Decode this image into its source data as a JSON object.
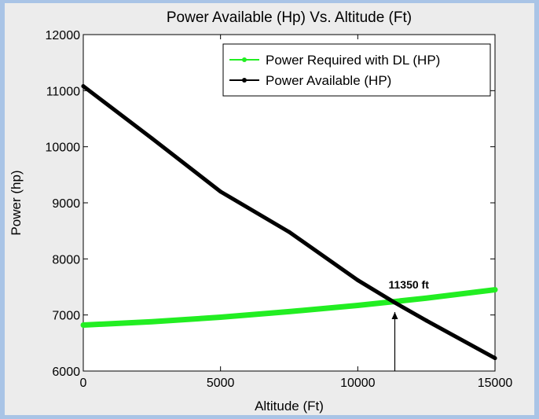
{
  "chart_data": {
    "type": "line",
    "title": "Power Available (Hp) Vs. Altitude (Ft)",
    "xlabel": "Altitude (Ft)",
    "ylabel": "Power (hp)",
    "xlim": [
      0,
      15000
    ],
    "ylim": [
      6000,
      12000
    ],
    "xticks": [
      0,
      5000,
      10000,
      15000
    ],
    "yticks": [
      6000,
      7000,
      8000,
      9000,
      10000,
      11000,
      12000
    ],
    "grid": false,
    "legend_position": "top-right",
    "series": [
      {
        "name": "Power Required with DL (HP)",
        "color": "#22ee22",
        "x": [
          0,
          2500,
          5000,
          7500,
          10000,
          12500,
          15000
        ],
        "y": [
          6820,
          6880,
          6960,
          7060,
          7170,
          7300,
          7450
        ]
      },
      {
        "name": "Power Available (HP)",
        "color": "#000000",
        "x": [
          0,
          2500,
          5000,
          7500,
          10000,
          11350,
          12500,
          15000
        ],
        "y": [
          11080,
          10150,
          9200,
          8480,
          7620,
          7220,
          6900,
          6230
        ]
      }
    ],
    "annotation": {
      "text": "11350 ft",
      "x": 11350,
      "y": 7220
    }
  }
}
